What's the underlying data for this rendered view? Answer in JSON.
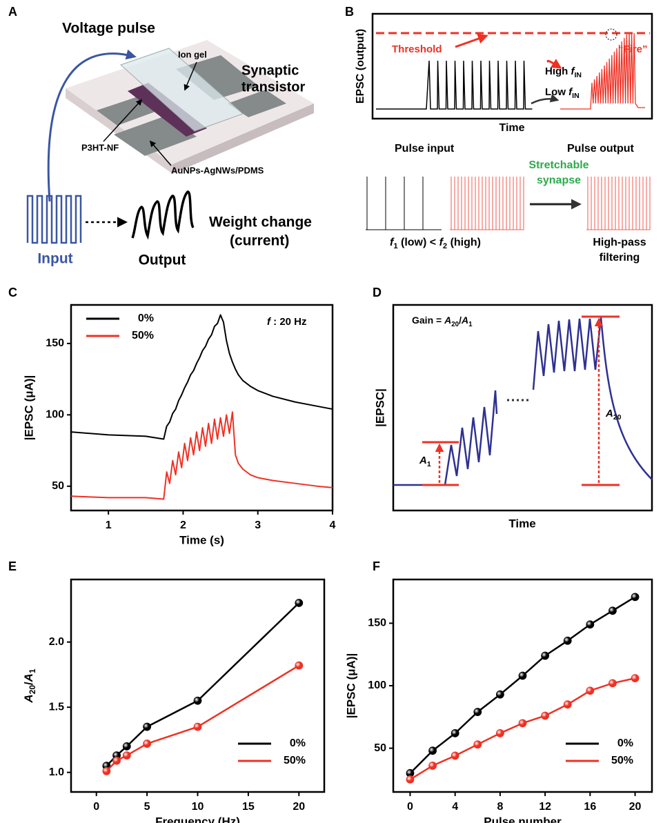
{
  "chart_data": [
    {
      "type": "line",
      "panel_label": "C",
      "xlabel": "Time (s)",
      "ylabel": "|EPSC (μA)|",
      "annotation": [
        "f",
        " : 20 Hz"
      ],
      "x": [
        0.5,
        1.0,
        1.5,
        1.74,
        1.78,
        1.82,
        1.86,
        1.9,
        1.94,
        1.98,
        2.02,
        2.06,
        2.1,
        2.14,
        2.18,
        2.22,
        2.26,
        2.3,
        2.34,
        2.38,
        2.42,
        2.46,
        2.5,
        2.54,
        2.58,
        2.62,
        2.66,
        2.7,
        2.74,
        2.8,
        2.9,
        3.0,
        3.2,
        3.5,
        3.8,
        4.0
      ],
      "series": [
        {
          "name": "0%",
          "color": "#000000",
          "values": [
            88,
            86,
            85,
            83,
            92,
            95,
            101,
            104,
            110,
            114,
            119,
            123,
            128,
            131,
            136,
            140,
            145,
            148,
            153,
            156,
            162,
            164,
            170,
            165,
            152,
            143,
            137,
            132,
            128,
            124,
            120,
            117,
            113,
            109,
            106,
            104
          ]
        },
        {
          "name": "50%",
          "color": "#ee3124",
          "values": [
            43,
            42,
            42,
            41,
            60,
            52,
            68,
            58,
            74,
            63,
            80,
            68,
            84,
            72,
            88,
            75,
            91,
            78,
            94,
            80,
            97,
            83,
            98,
            85,
            100,
            87,
            102,
            72,
            66,
            62,
            58,
            56,
            54,
            52,
            50,
            49
          ]
        }
      ],
      "xlim": [
        0.5,
        4
      ],
      "xticks": [
        1,
        2,
        3,
        4
      ],
      "ylim": [
        33,
        177
      ],
      "yticks": [
        50,
        100,
        150
      ],
      "legend": "upper left",
      "markers": false
    },
    {
      "type": "line",
      "panel_label": "E",
      "xlabel": "Frequency (Hz)",
      "ylabel": [
        "A",
        "20",
        "/",
        "A",
        "1"
      ],
      "x": [
        1,
        2,
        3,
        5,
        10,
        20
      ],
      "series": [
        {
          "name": "0%",
          "color": "#000000",
          "values": [
            1.05,
            1.13,
            1.2,
            1.35,
            1.55,
            2.3
          ]
        },
        {
          "name": "50%",
          "color": "#ee3124",
          "values": [
            1.01,
            1.09,
            1.13,
            1.22,
            1.35,
            1.82
          ]
        }
      ],
      "xlim": [
        -2.5,
        22.5
      ],
      "xticks": [
        0,
        5,
        10,
        15,
        20
      ],
      "ylim": [
        0.85,
        2.48
      ],
      "yticks": [
        {
          "value": 1,
          "label": "1.0"
        },
        1.5,
        {
          "value": 2,
          "label": "2.0"
        }
      ],
      "legend": "lower right",
      "markers": true
    },
    {
      "type": "line",
      "panel_label": "F",
      "xlabel": "Pulse number",
      "ylabel": "|EPSC (μA)|",
      "x": [
        0,
        2,
        4,
        6,
        8,
        10,
        12,
        14,
        16,
        18,
        20
      ],
      "series": [
        {
          "name": "0%",
          "color": "#000000",
          "values": [
            30,
            48,
            62,
            79,
            93,
            108,
            124,
            136,
            149,
            160,
            171
          ]
        },
        {
          "name": "50%",
          "color": "#ee3124",
          "values": [
            25,
            36,
            44,
            53,
            62,
            70,
            76,
            85,
            96,
            102,
            106
          ]
        }
      ],
      "xlim": [
        -1.5,
        21.5
      ],
      "xticks": [
        0,
        4,
        8,
        12,
        16,
        20
      ],
      "ylim": [
        15,
        185
      ],
      "yticks": [
        50,
        100,
        150
      ],
      "legend": "lower right",
      "markers": true
    }
  ],
  "diagram": {
    "A": {
      "label": "A",
      "voltage_pulse": "Voltage pulse",
      "ion_gel": "Ion gel",
      "synaptic": "Synaptic",
      "transistor": "transistor",
      "p3ht": "P3HT-NF",
      "electrode": "AuNPs-AgNWs/PDMS",
      "weight_change": "Weight change",
      "current": "(current)",
      "input": "Input",
      "output": "Output"
    },
    "B": {
      "label": "B",
      "ylabel": "EPSC (output)",
      "threshold": "Threshold",
      "high_f": [
        "High ",
        "f",
        "IN"
      ],
      "low_f": [
        "Low ",
        "f",
        "IN"
      ],
      "fire": "“Fire”",
      "xlabel": "Time",
      "pulse_input": "Pulse input",
      "pulse_output": "Pulse output",
      "stretchable": "Stretchable",
      "synapse": "synapse",
      "freq": [
        "f",
        "1",
        " (low) < ",
        "f",
        "2",
        " (high)"
      ],
      "high_pass": "High-pass",
      "filtering": "filtering"
    },
    "D": {
      "label": "D",
      "gain": [
        "Gain = ",
        "A",
        "20",
        "/",
        "A",
        "1"
      ],
      "ylabel": "|EPSC|",
      "xlabel": "Time",
      "a1": [
        "A",
        "1"
      ],
      "a20": [
        "A",
        "20"
      ]
    }
  }
}
